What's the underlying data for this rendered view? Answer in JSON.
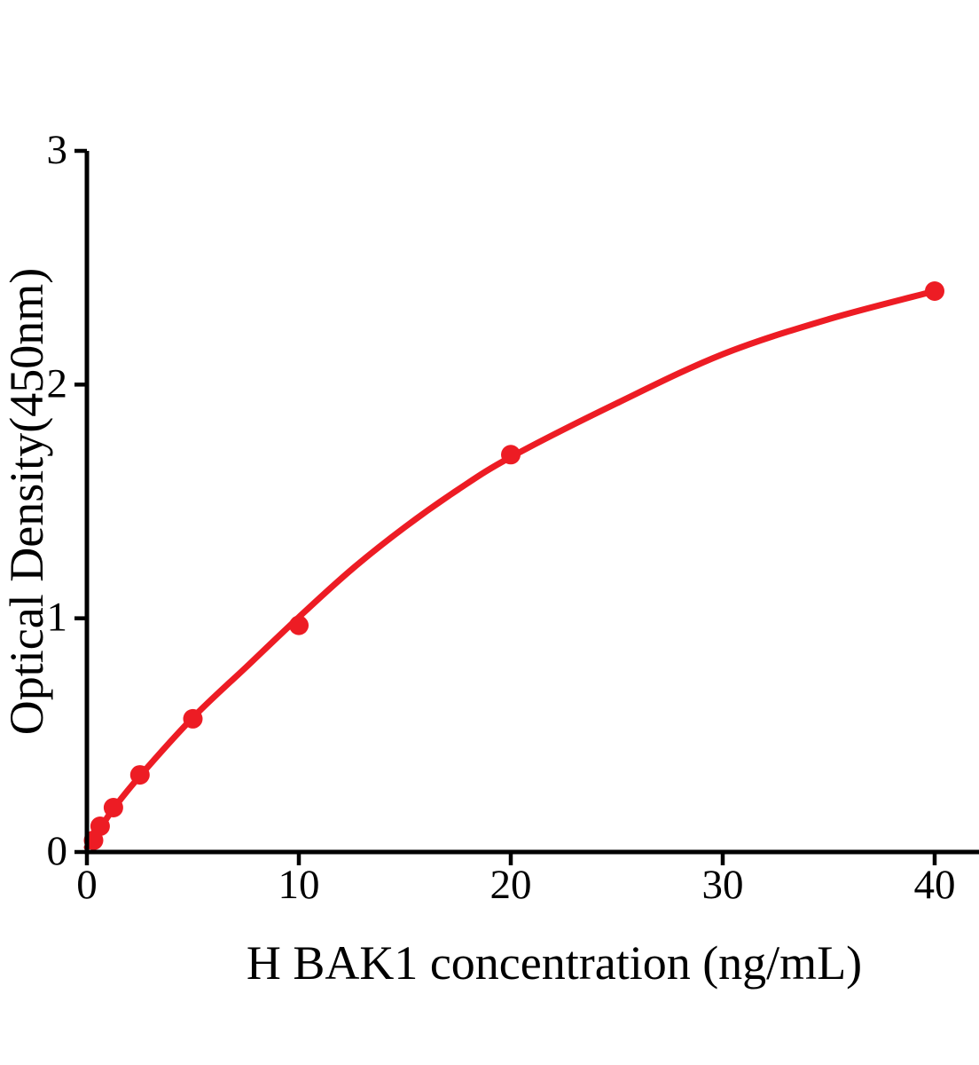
{
  "chart_data": {
    "type": "scatter",
    "title": "",
    "xlabel": "H BAK1 concentration (ng/mL)",
    "ylabel": "Optical Density(450nm)",
    "x_ticks": [
      0,
      10,
      20,
      30,
      40
    ],
    "y_ticks": [
      0,
      1,
      2,
      3
    ],
    "xlim": [
      0,
      42
    ],
    "ylim": [
      0,
      3
    ],
    "legend": "none",
    "grid": false,
    "marker": "filled-circle",
    "points": [
      {
        "x": 0.3125,
        "y": 0.05
      },
      {
        "x": 0.625,
        "y": 0.11
      },
      {
        "x": 1.25,
        "y": 0.19
      },
      {
        "x": 2.5,
        "y": 0.33
      },
      {
        "x": 5,
        "y": 0.57
      },
      {
        "x": 10,
        "y": 0.97
      },
      {
        "x": 20,
        "y": 1.7
      },
      {
        "x": 40,
        "y": 2.4
      }
    ],
    "fit_curve": [
      [
        0,
        0.02
      ],
      [
        0.625,
        0.1
      ],
      [
        1.25,
        0.185
      ],
      [
        2.5,
        0.325
      ],
      [
        5,
        0.575
      ],
      [
        7.5,
        0.79
      ],
      [
        10,
        1.005
      ],
      [
        12.5,
        1.21
      ],
      [
        15,
        1.39
      ],
      [
        17.5,
        1.55
      ],
      [
        20,
        1.69
      ],
      [
        25,
        1.92
      ],
      [
        30,
        2.13
      ],
      [
        35,
        2.28
      ],
      [
        40,
        2.4
      ]
    ],
    "colors": {
      "series": "#ED1C24",
      "axis": "#000000",
      "background": "#FFFFFF"
    }
  }
}
